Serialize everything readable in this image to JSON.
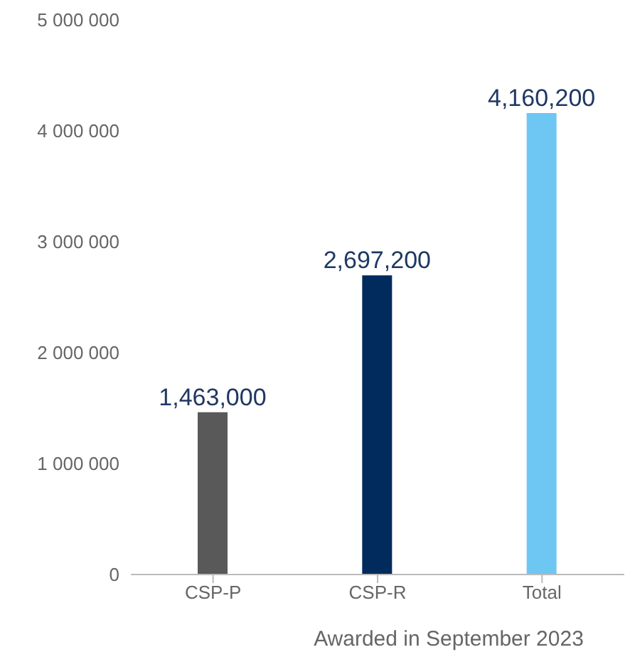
{
  "chart_data": {
    "type": "bar",
    "xlabel": "Awarded in September 2023",
    "categories": [
      "CSP-P",
      "CSP-R",
      "Total"
    ],
    "values": [
      1463000,
      2697200,
      4160200
    ],
    "colors": [
      "#595959",
      "#002b5c",
      "#6ec6f2"
    ],
    "ylim": [
      0,
      5000000
    ],
    "yticks": [
      {
        "value": 0,
        "label": "0"
      },
      {
        "value": 1000000,
        "label": "1 000 000"
      },
      {
        "value": 2000000,
        "label": "2 000 000"
      },
      {
        "value": 3000000,
        "label": "3 000 000"
      },
      {
        "value": 4000000,
        "label": "4 000 000"
      },
      {
        "value": 5000000,
        "label": "5 000 000"
      }
    ],
    "value_labels": [
      "1,463,000",
      "2,697,200",
      "4,160,200"
    ],
    "grid": false,
    "legend": false
  }
}
